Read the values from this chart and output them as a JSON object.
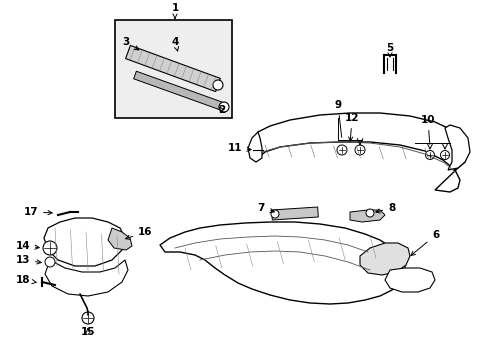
{
  "bg_color": "#ffffff",
  "fig_width": 4.89,
  "fig_height": 3.6,
  "dpi": 100,
  "line_color": "#000000"
}
